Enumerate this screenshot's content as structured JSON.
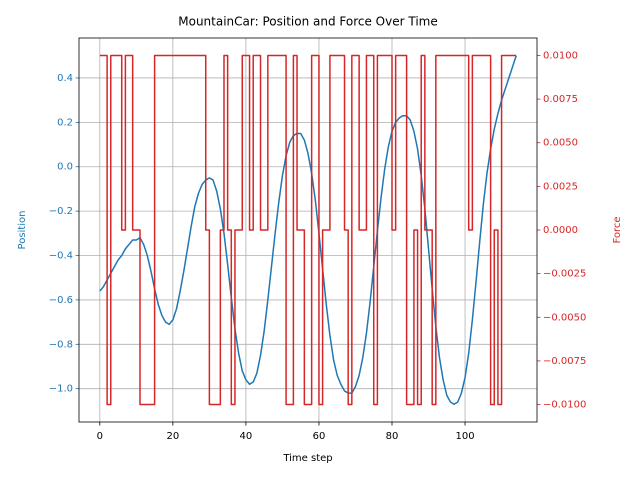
{
  "chart_data": {
    "type": "line",
    "title": "MountainCar: Position and Force Over Time",
    "xlabel": "Time step",
    "ylabel": "Position",
    "y2label": "Force",
    "x": [
      0,
      1,
      2,
      3,
      4,
      5,
      6,
      7,
      8,
      9,
      10,
      11,
      12,
      13,
      14,
      15,
      16,
      17,
      18,
      19,
      20,
      21,
      22,
      23,
      24,
      25,
      26,
      27,
      28,
      29,
      30,
      31,
      32,
      33,
      34,
      35,
      36,
      37,
      38,
      39,
      40,
      41,
      42,
      43,
      44,
      45,
      46,
      47,
      48,
      49,
      50,
      51,
      52,
      53,
      54,
      55,
      56,
      57,
      58,
      59,
      60,
      61,
      62,
      63,
      64,
      65,
      66,
      67,
      68,
      69,
      70,
      71,
      72,
      73,
      74,
      75,
      76,
      77,
      78,
      79,
      80,
      81,
      82,
      83,
      84,
      85,
      86,
      87,
      88,
      89,
      90,
      91,
      92,
      93,
      94,
      95,
      96,
      97,
      98,
      99,
      100,
      101,
      102,
      103,
      104,
      105,
      106,
      107,
      108,
      109,
      110,
      111,
      112,
      113,
      114
    ],
    "series": [
      {
        "name": "Position",
        "color": "#1f77b4",
        "axis": "y",
        "drawstyle": "default",
        "values": [
          -0.56,
          -0.54,
          -0.51,
          -0.48,
          -0.45,
          -0.42,
          -0.4,
          -0.37,
          -0.35,
          -0.33,
          -0.33,
          -0.32,
          -0.35,
          -0.4,
          -0.47,
          -0.55,
          -0.62,
          -0.67,
          -0.7,
          -0.71,
          -0.69,
          -0.64,
          -0.56,
          -0.47,
          -0.37,
          -0.27,
          -0.18,
          -0.12,
          -0.08,
          -0.06,
          -0.05,
          -0.06,
          -0.11,
          -0.19,
          -0.3,
          -0.44,
          -0.59,
          -0.73,
          -0.84,
          -0.92,
          -0.96,
          -0.98,
          -0.97,
          -0.93,
          -0.85,
          -0.74,
          -0.6,
          -0.45,
          -0.3,
          -0.16,
          -0.04,
          0.05,
          0.11,
          0.14,
          0.15,
          0.15,
          0.12,
          0.06,
          -0.03,
          -0.15,
          -0.3,
          -0.46,
          -0.62,
          -0.76,
          -0.87,
          -0.94,
          -0.98,
          -1.01,
          -1.02,
          -1.02,
          -0.99,
          -0.94,
          -0.86,
          -0.75,
          -0.61,
          -0.45,
          -0.29,
          -0.14,
          -0.01,
          0.09,
          0.16,
          0.2,
          0.22,
          0.23,
          0.23,
          0.21,
          0.16,
          0.08,
          -0.04,
          -0.19,
          -0.37,
          -0.55,
          -0.72,
          -0.86,
          -0.96,
          -1.03,
          -1.06,
          -1.07,
          -1.06,
          -1.02,
          -0.95,
          -0.84,
          -0.69,
          -0.52,
          -0.34,
          -0.17,
          -0.03,
          0.08,
          0.17,
          0.24,
          0.3,
          0.35,
          0.4,
          0.45,
          0.5
        ]
      },
      {
        "name": "Force",
        "color": "#d62728",
        "axis": "y2",
        "drawstyle": "steps-post",
        "values": [
          0.01,
          0.01,
          -0.01,
          0.01,
          0.01,
          0.01,
          0,
          0.01,
          0.01,
          0,
          0,
          -0.01,
          -0.01,
          -0.01,
          -0.01,
          0.01,
          0.01,
          0.01,
          0.01,
          0.01,
          0.01,
          0.01,
          0.01,
          0.01,
          0.01,
          0.01,
          0.01,
          0.01,
          0.01,
          0,
          -0.01,
          -0.01,
          -0.01,
          0,
          0.01,
          0,
          -0.01,
          0,
          0,
          0.01,
          0.01,
          0,
          0.01,
          0.01,
          0,
          0,
          0.01,
          0.01,
          0.01,
          0.01,
          0.01,
          -0.01,
          -0.01,
          0.01,
          0,
          0,
          -0.01,
          -0.01,
          0.01,
          0.01,
          -0.01,
          0,
          0,
          0.01,
          0.01,
          0.01,
          0.01,
          0,
          -0.01,
          0.01,
          0.01,
          0,
          0,
          0.01,
          0.01,
          -0.01,
          0.01,
          0.01,
          0.01,
          0.01,
          0,
          0.01,
          0.01,
          0.01,
          -0.01,
          -0.01,
          0,
          -0.01,
          0.01,
          0,
          0,
          -0.01,
          0.01,
          0.01,
          0.01,
          0.01,
          0.01,
          0.01,
          0.01,
          0.01,
          0.01,
          0,
          0.01,
          0.01,
          0.01,
          0.01,
          0.01,
          -0.01,
          0,
          -0.01,
          0.01,
          0.01,
          0.01,
          0.01,
          0.01
        ]
      }
    ],
    "xlim": [
      -5.7,
      119.7
    ],
    "xticks": [
      0,
      20,
      40,
      60,
      80,
      100
    ],
    "ylim": [
      -1.15,
      0.58
    ],
    "yticks": [
      {
        "value": -1,
        "label": "−1.0"
      },
      {
        "value": -0.8,
        "label": "−0.8"
      },
      {
        "value": -0.6,
        "label": "−0.6"
      },
      {
        "value": -0.4,
        "label": "−0.4"
      },
      {
        "value": -0.2,
        "label": "−0.2"
      },
      {
        "value": 0,
        "label": "0.0"
      },
      0.2,
      0.4
    ],
    "y2lim": [
      -0.011,
      0.011
    ],
    "y2ticks": [
      {
        "value": -0.01,
        "label": "−0.0100"
      },
      {
        "value": -0.0075,
        "label": "−0.0075"
      },
      {
        "value": -0.005,
        "label": "−0.0050"
      },
      {
        "value": -0.0025,
        "label": "−0.0025"
      },
      {
        "value": 0,
        "label": "0.0000"
      },
      {
        "value": 0.0025,
        "label": "0.0025"
      },
      {
        "value": 0.005,
        "label": "0.0050"
      },
      {
        "value": 0.0075,
        "label": "0.0075"
      },
      {
        "value": 0.01,
        "label": "0.0100"
      }
    ],
    "grid": true
  }
}
